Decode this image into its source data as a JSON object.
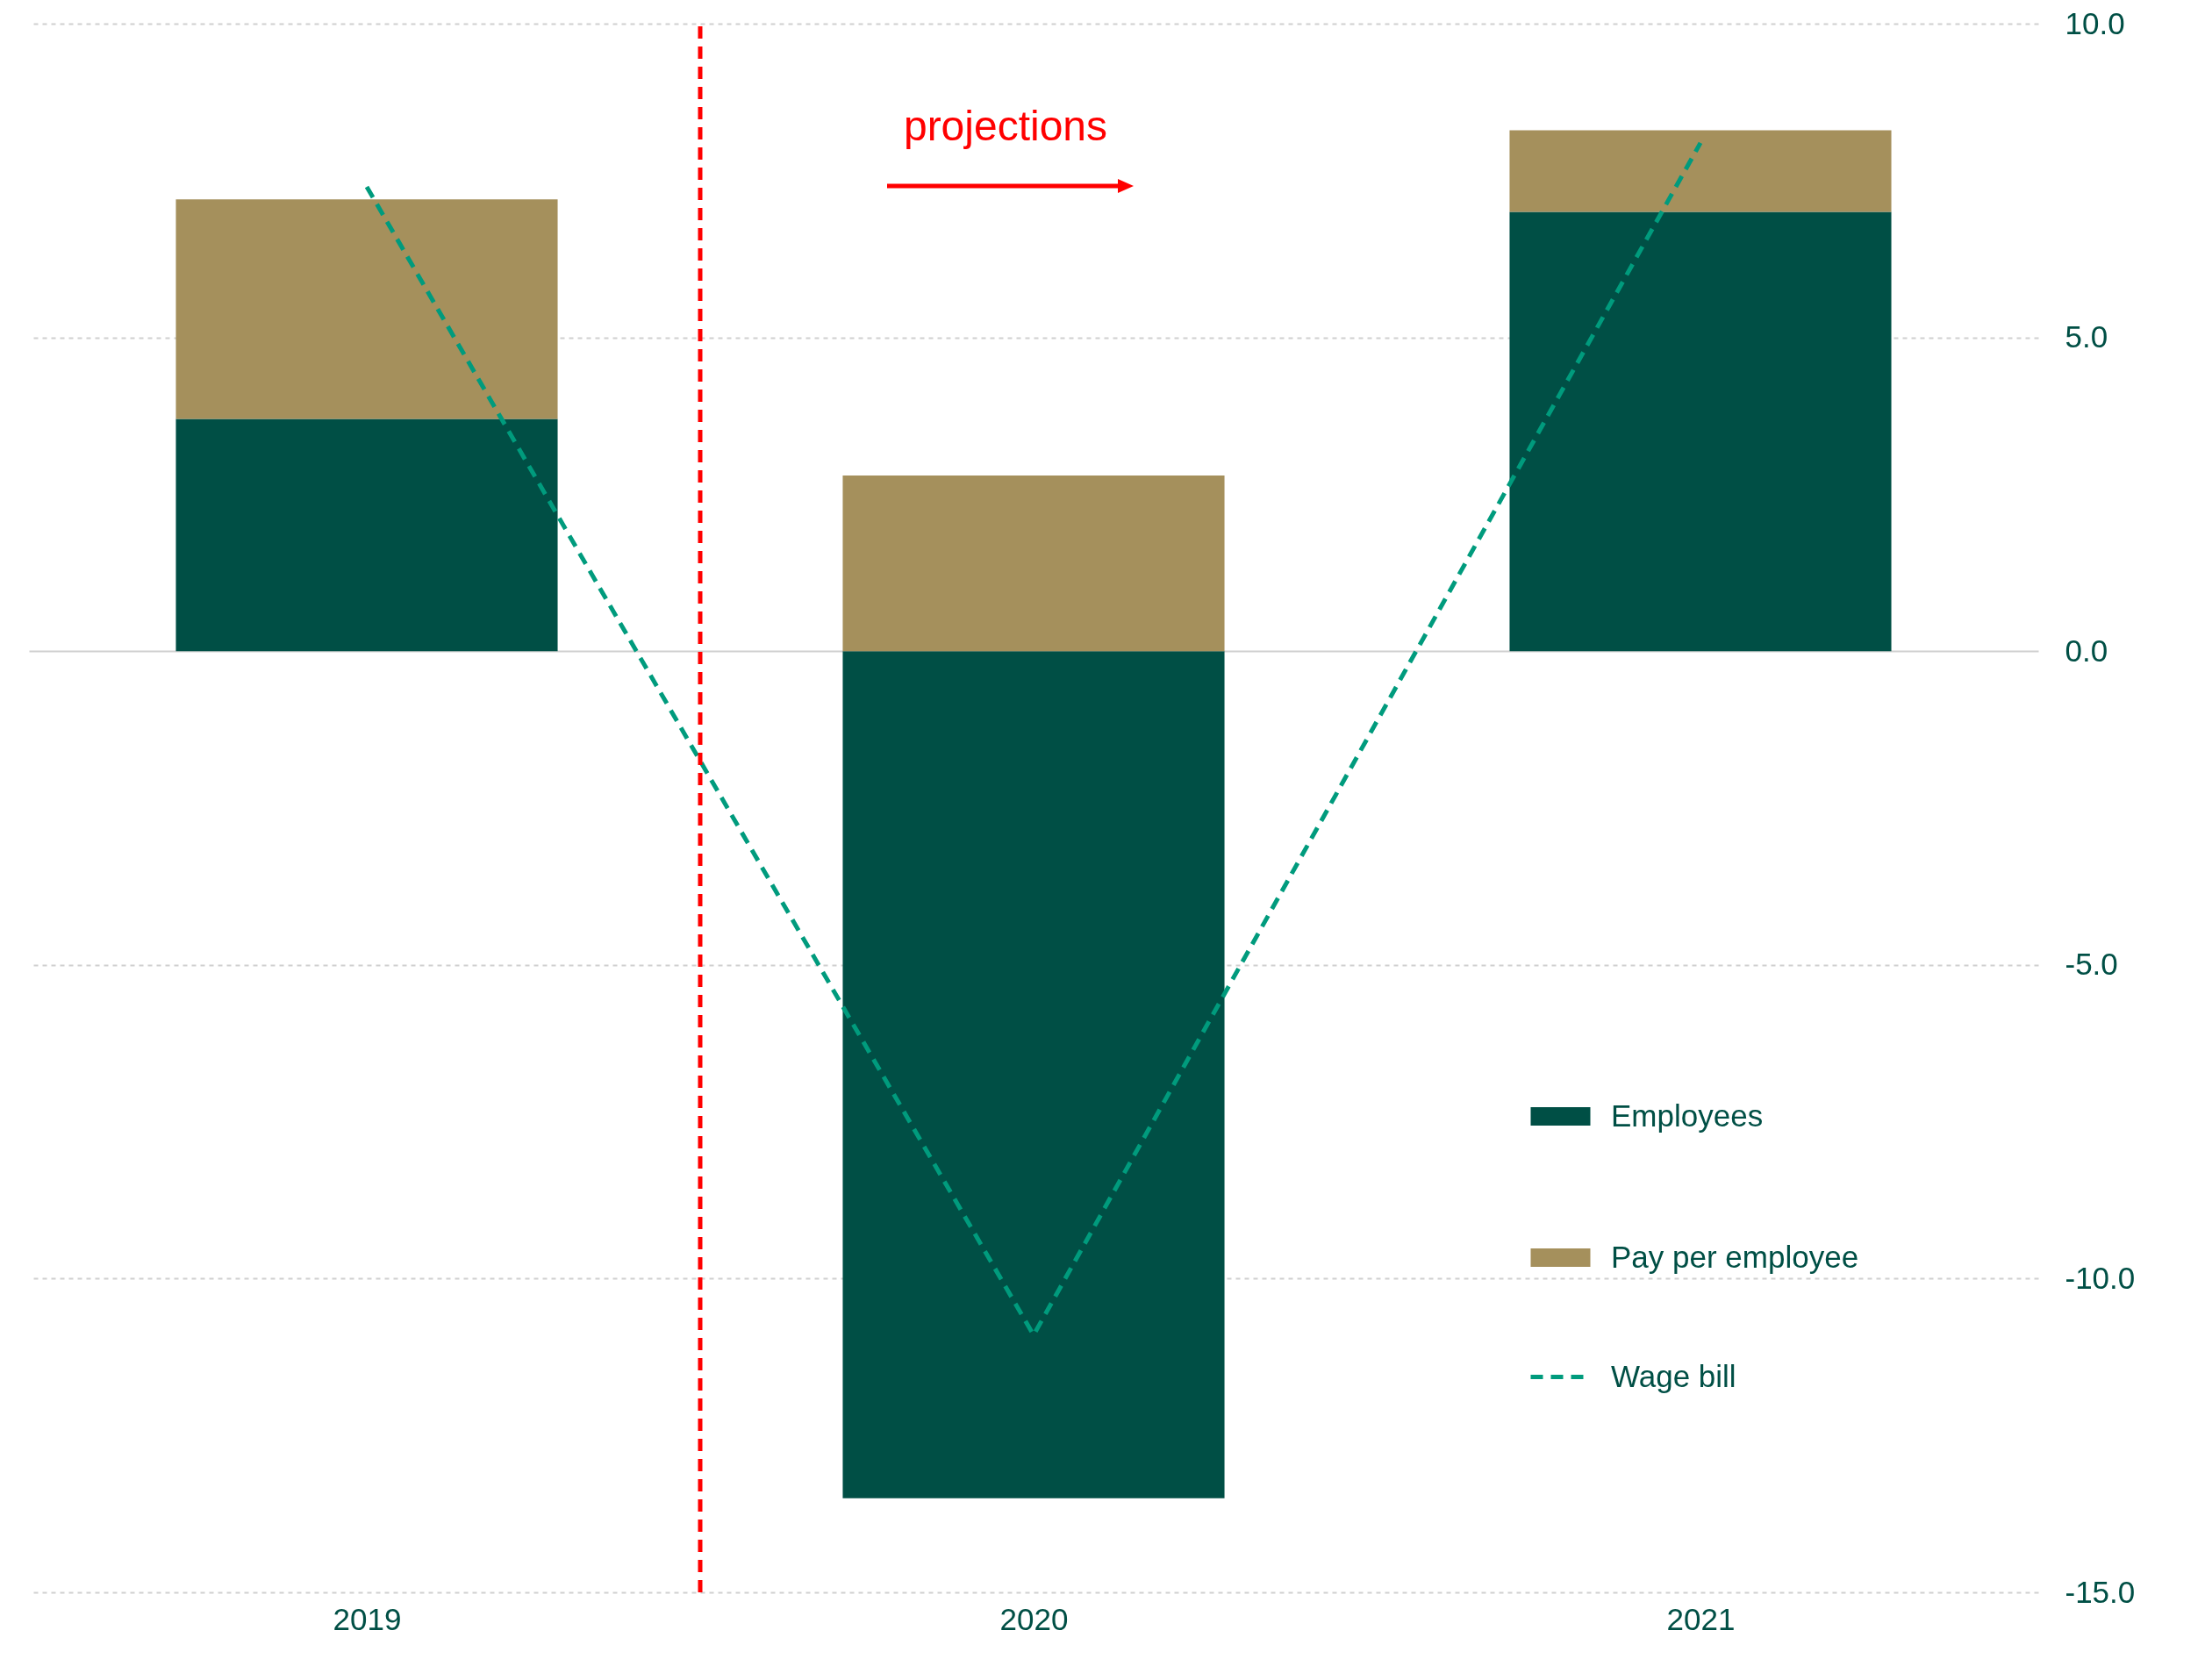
{
  "chart_data": {
    "type": "bar",
    "stacked": true,
    "x": [
      2019,
      2020,
      2021
    ],
    "xlim": [
      2018.5,
      2021.5
    ],
    "xticks": [
      2019,
      2020,
      2021
    ],
    "ylim": [
      -15,
      10
    ],
    "yticks": [
      {
        "value": -15,
        "label": "-15.0"
      },
      {
        "value": -10,
        "label": "-10.0"
      },
      {
        "value": -5,
        "label": "-5.0"
      },
      {
        "value": 0,
        "label": "0.0"
      },
      {
        "value": 5,
        "label": "5.0"
      },
      {
        "value": 10,
        "label": "10.0"
      }
    ],
    "grid": "y",
    "legend": "bottom right",
    "series": [
      {
        "name": "Employees",
        "color": "#004f45",
        "values": [
          3.7,
          -13.5,
          7.0
        ]
      },
      {
        "name": "Pay per employee",
        "color": "#a5905c",
        "values": [
          3.5,
          2.8,
          1.3
        ]
      },
      {
        "name": "Wage bill",
        "type": "line",
        "line_style": "dashed",
        "marker": "none",
        "color": "#009b7d",
        "values": [
          7.4,
          -10.9,
          8.1
        ]
      }
    ],
    "ref_lines": [
      {
        "axis": "x",
        "value": 2019.5,
        "color": "#ff0000",
        "line_style": "dashed"
      }
    ],
    "annotations": [
      "projections"
    ]
  }
}
